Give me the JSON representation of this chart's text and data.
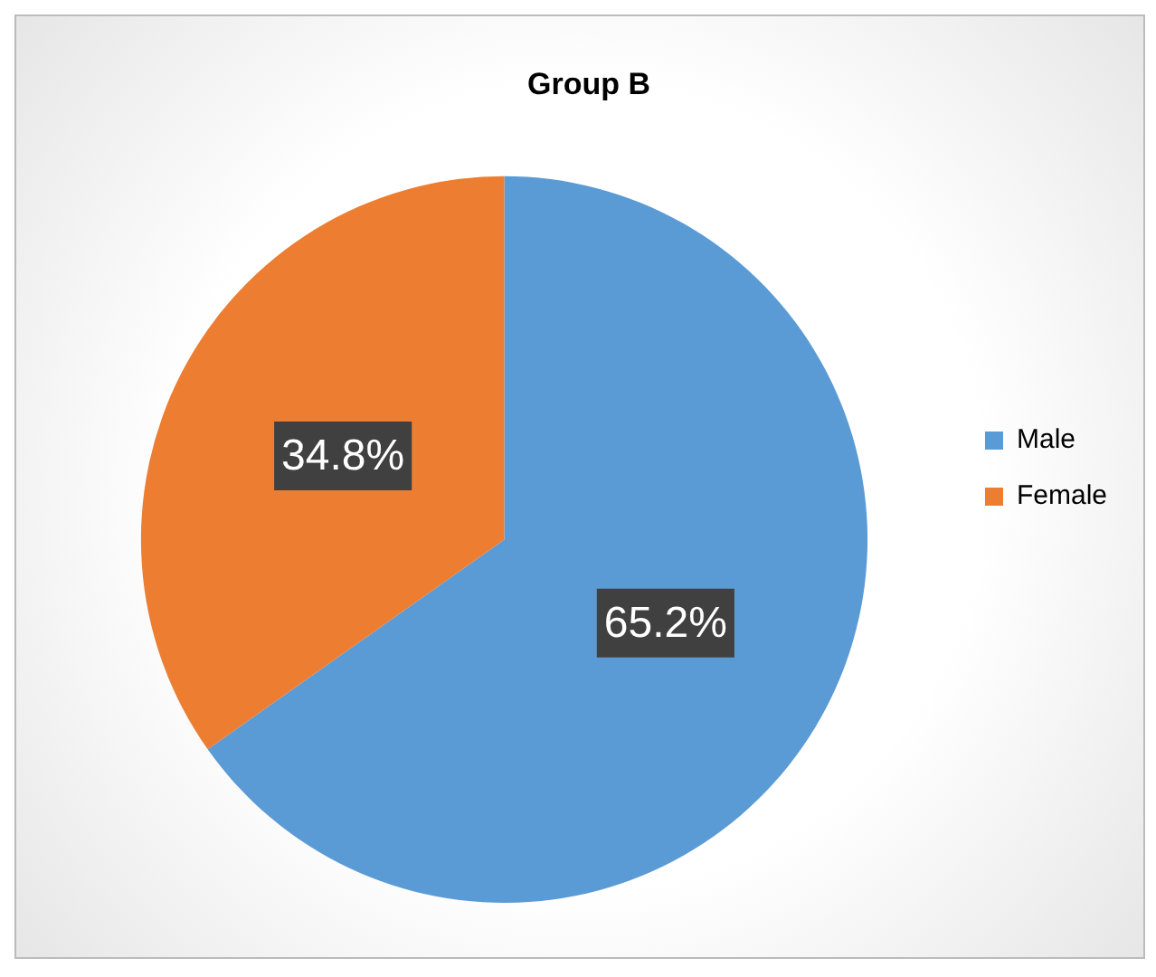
{
  "chart_data": {
    "type": "pie",
    "title": "Group B",
    "categories": [
      "Male",
      "Female"
    ],
    "values": [
      65.2,
      34.8
    ],
    "colors": [
      "#5b9bd5",
      "#ed7d31"
    ],
    "value_labels": [
      "65.2%",
      "34.8%"
    ],
    "legend": "right"
  }
}
